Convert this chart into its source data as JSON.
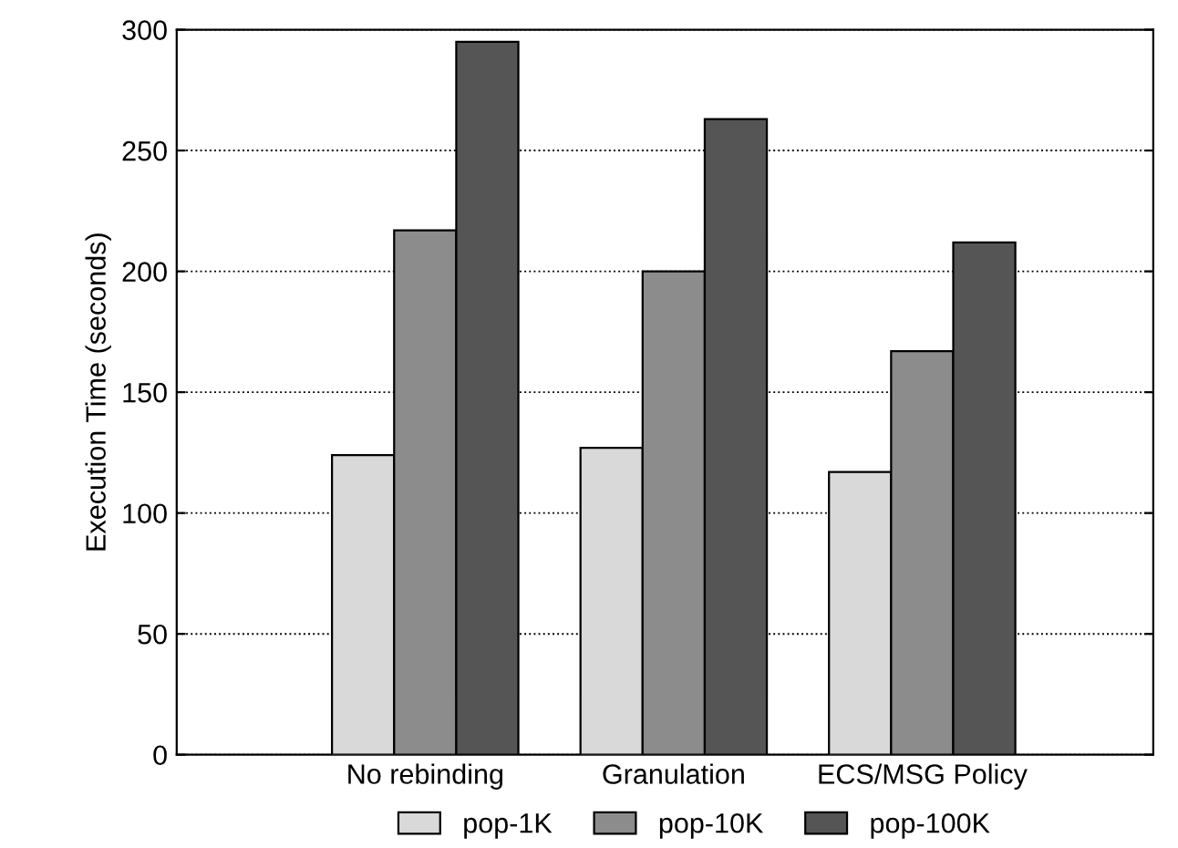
{
  "chart_data": {
    "type": "bar",
    "ylabel": "Execution Time (seconds)",
    "categories": [
      "No rebinding",
      "Granulation",
      "ECS/MSG Policy"
    ],
    "series": [
      {
        "name": "pop-1K",
        "color": "#d9d9d9",
        "values": [
          124,
          127,
          117
        ]
      },
      {
        "name": "pop-10K",
        "color": "#8c8c8c",
        "values": [
          217,
          200,
          167
        ]
      },
      {
        "name": "pop-100K",
        "color": "#555555",
        "values": [
          295,
          263,
          212
        ]
      }
    ],
    "ylim": [
      0,
      300
    ],
    "yticks": [
      0,
      50,
      100,
      150,
      200,
      250,
      300
    ],
    "grid": "y",
    "legend": "bottom"
  }
}
